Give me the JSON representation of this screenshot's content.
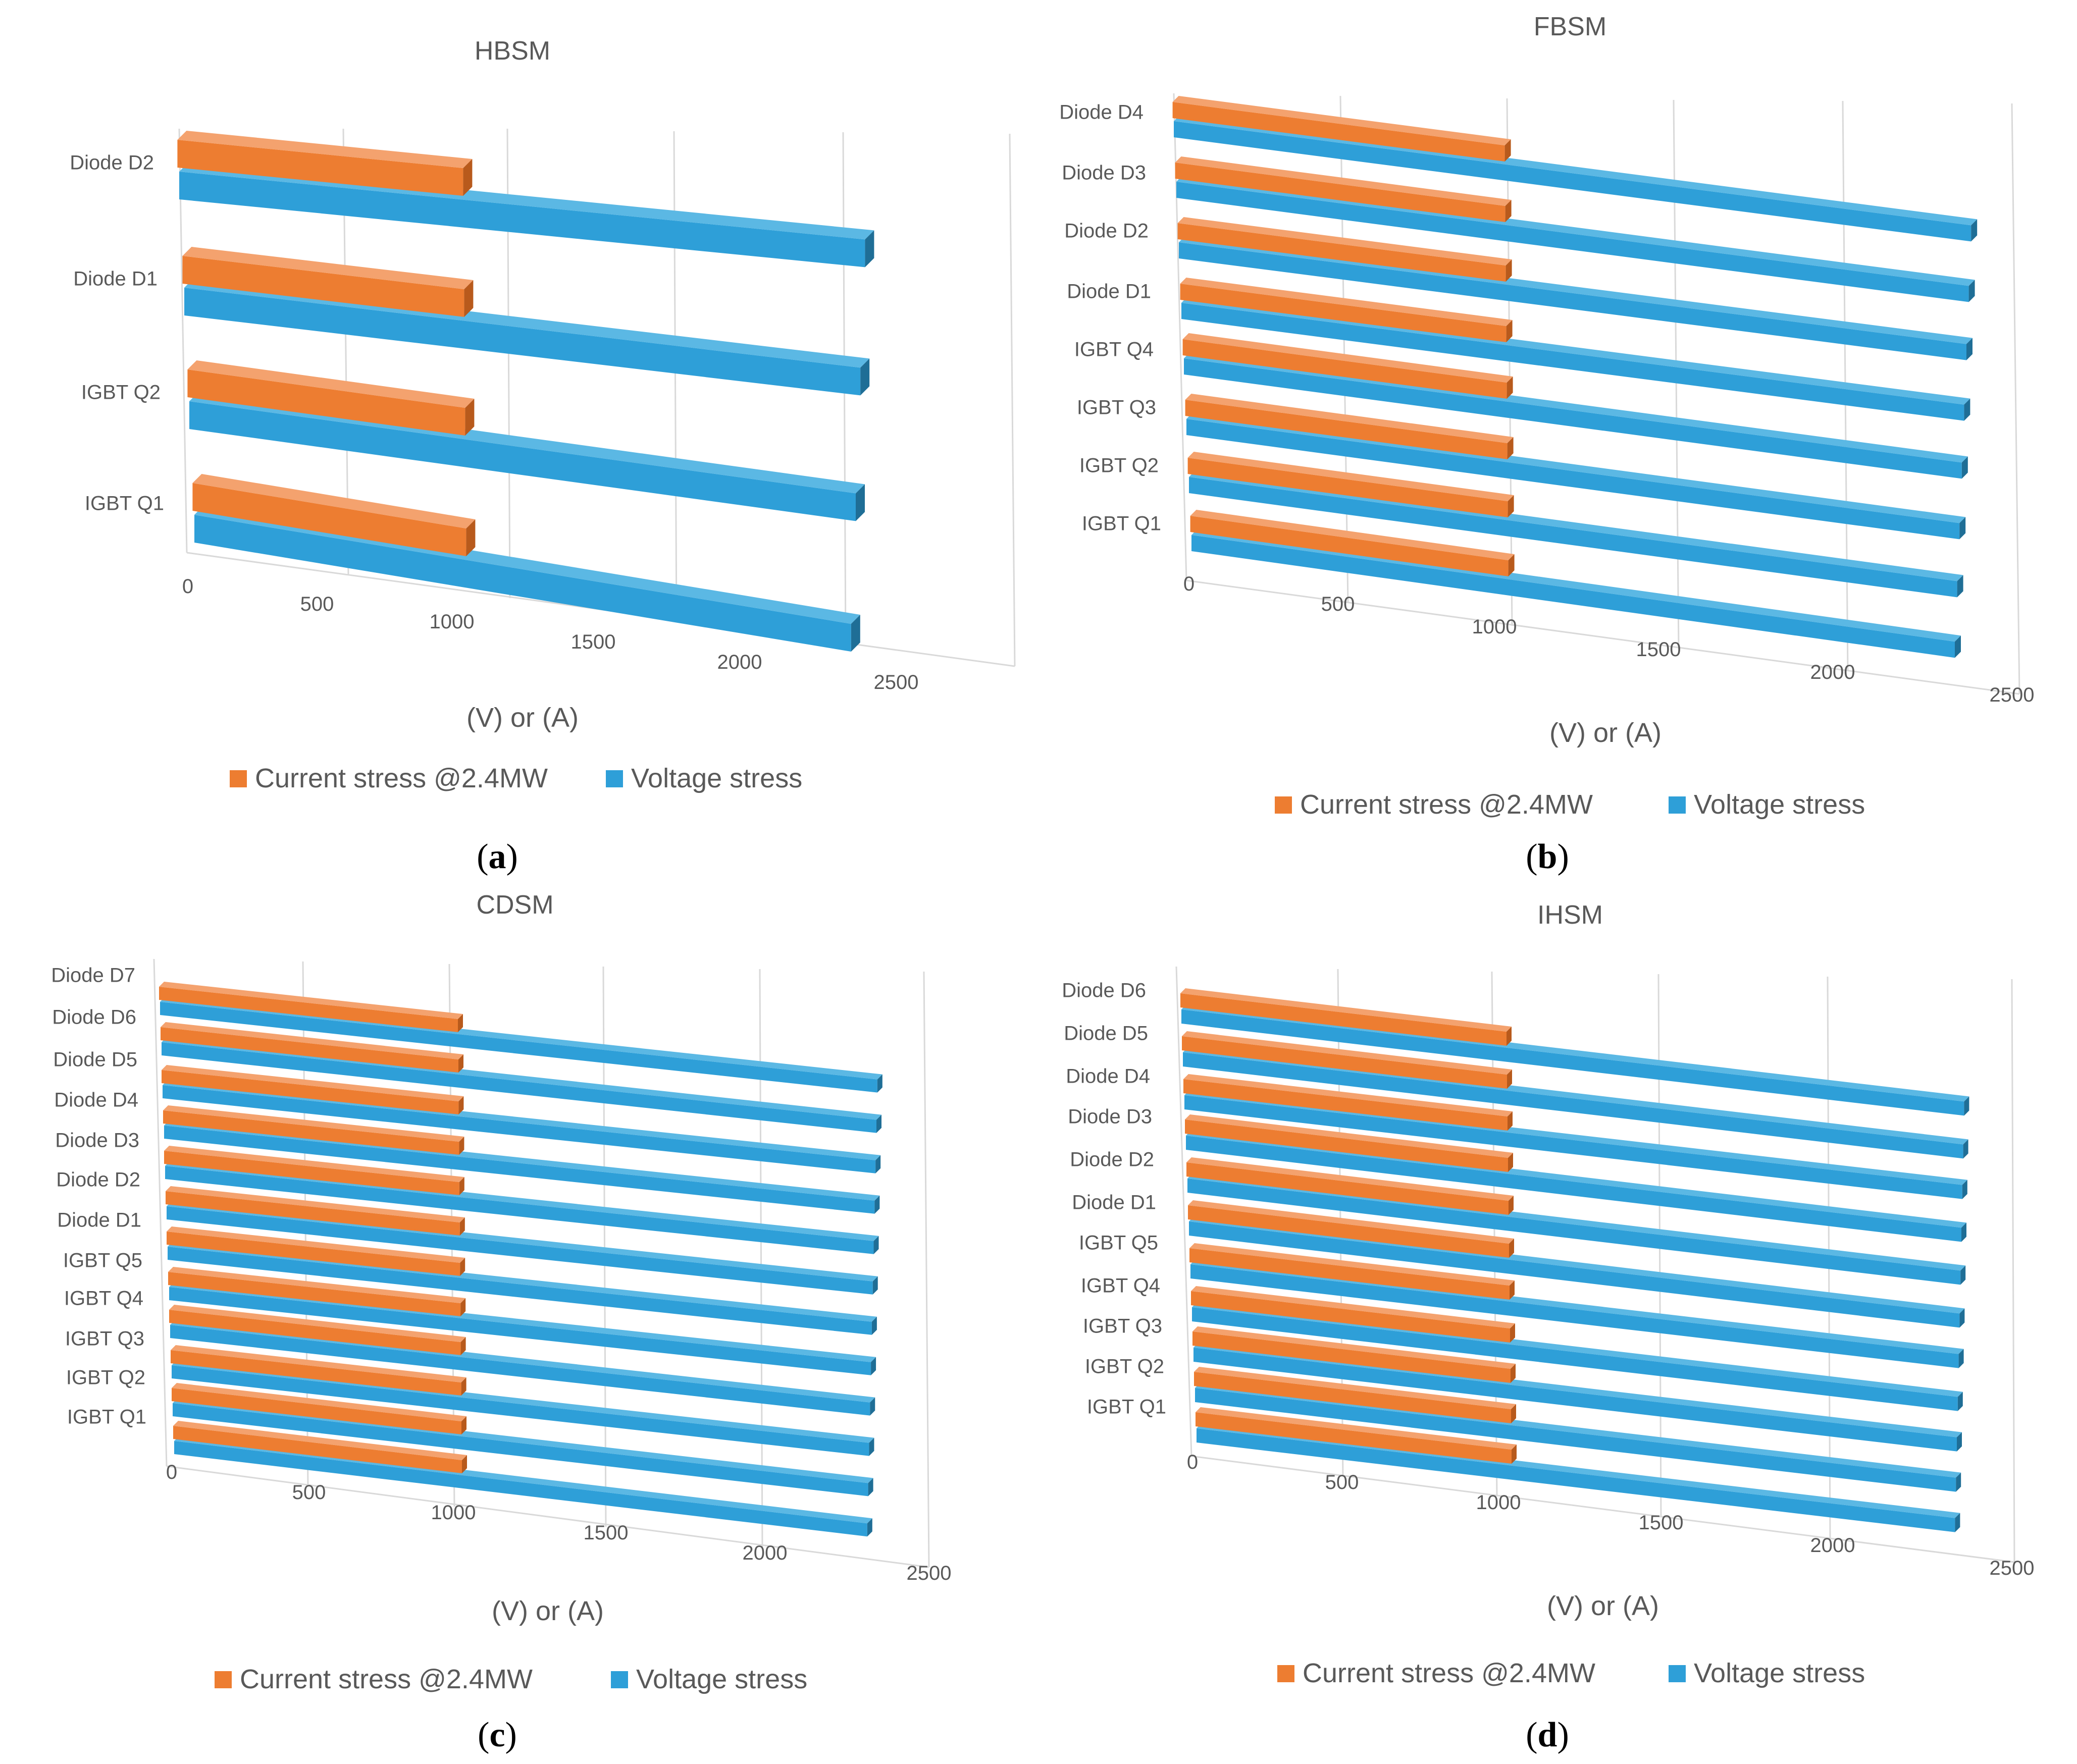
{
  "chart_data": [
    {
      "type": "bar",
      "title": "HBSM",
      "subfigure": "a",
      "xlabel": "(V) or (A)",
      "categories": [
        "IGBT Q1",
        "IGBT Q2",
        "Diode D1",
        "Diode D2"
      ],
      "xticks": [
        0,
        500,
        1000,
        1500,
        2000,
        2500
      ],
      "xlim": [
        0,
        2500
      ],
      "series": [
        {
          "name": "Current stress @2.4MW",
          "values": [
            1000,
            1000,
            1000,
            1000
          ]
        },
        {
          "name": "Voltage stress",
          "values": [
            2400,
            2400,
            2400,
            2400
          ]
        }
      ]
    },
    {
      "type": "bar",
      "title": "FBSM",
      "subfigure": "b",
      "xlabel": "(V) or (A)",
      "categories": [
        "IGBT Q1",
        "IGBT Q2",
        "IGBT Q3",
        "IGBT Q4",
        "Diode D1",
        "Diode D2",
        "Diode D3",
        "Diode D4"
      ],
      "xticks": [
        0,
        500,
        1000,
        1500,
        2000,
        2500
      ],
      "xlim": [
        0,
        2500
      ],
      "series": [
        {
          "name": "Current stress @2.4MW",
          "values": [
            1000,
            1000,
            1000,
            1000,
            1000,
            1000,
            1000,
            1000
          ]
        },
        {
          "name": "Voltage stress",
          "values": [
            2400,
            2400,
            2400,
            2400,
            2400,
            2400,
            2400,
            2400
          ]
        }
      ]
    },
    {
      "type": "bar",
      "title": "CDSM",
      "subfigure": "c",
      "xlabel": "(V) or (A)",
      "categories": [
        "IGBT Q1",
        "IGBT Q2",
        "IGBT Q3",
        "IGBT Q4",
        "IGBT Q5",
        "Diode D1",
        "Diode D2",
        "Diode D3",
        "Diode D4",
        "Diode D5",
        "Diode D6",
        "Diode D7"
      ],
      "xticks": [
        0,
        500,
        1000,
        1500,
        2000,
        2500
      ],
      "xlim": [
        0,
        2500
      ],
      "series": [
        {
          "name": "Current stress @2.4MW",
          "values": [
            1000,
            1000,
            1000,
            1000,
            1000,
            1000,
            1000,
            1000,
            1000,
            1000,
            1000,
            1000
          ]
        },
        {
          "name": "Voltage stress",
          "values": [
            2400,
            2400,
            2400,
            2400,
            2400,
            2400,
            2400,
            2400,
            2400,
            2400,
            2400,
            2400
          ]
        }
      ]
    },
    {
      "type": "bar",
      "title": "IHSM",
      "subfigure": "d",
      "xlabel": "(V) or (A)",
      "categories": [
        "IGBT Q1",
        "IGBT Q2",
        "IGBT Q3",
        "IGBT Q4",
        "IGBT Q5",
        "Diode D1",
        "Diode D2",
        "Diode D3",
        "Diode D4",
        "Diode D5",
        "Diode D6"
      ],
      "xticks": [
        0,
        500,
        1000,
        1500,
        2000,
        2500
      ],
      "xlim": [
        0,
        2500
      ],
      "series": [
        {
          "name": "Current stress @2.4MW",
          "values": [
            1000,
            1000,
            1000,
            1000,
            1000,
            1000,
            1000,
            1000,
            1000,
            1000,
            1000
          ]
        },
        {
          "name": "Voltage stress",
          "values": [
            2400,
            2400,
            2400,
            2400,
            2400,
            2400,
            2400,
            2400,
            2400,
            2400,
            2400
          ]
        }
      ]
    }
  ],
  "colors": {
    "current_front": "#ED7D31",
    "current_top": "#F4A26E",
    "current_side": "#B85A1C",
    "voltage_front": "#2E9FD8",
    "voltage_top": "#5BB8E4",
    "voltage_side": "#1F6E96",
    "text": "#595959",
    "grid": "#D9D9D9"
  }
}
